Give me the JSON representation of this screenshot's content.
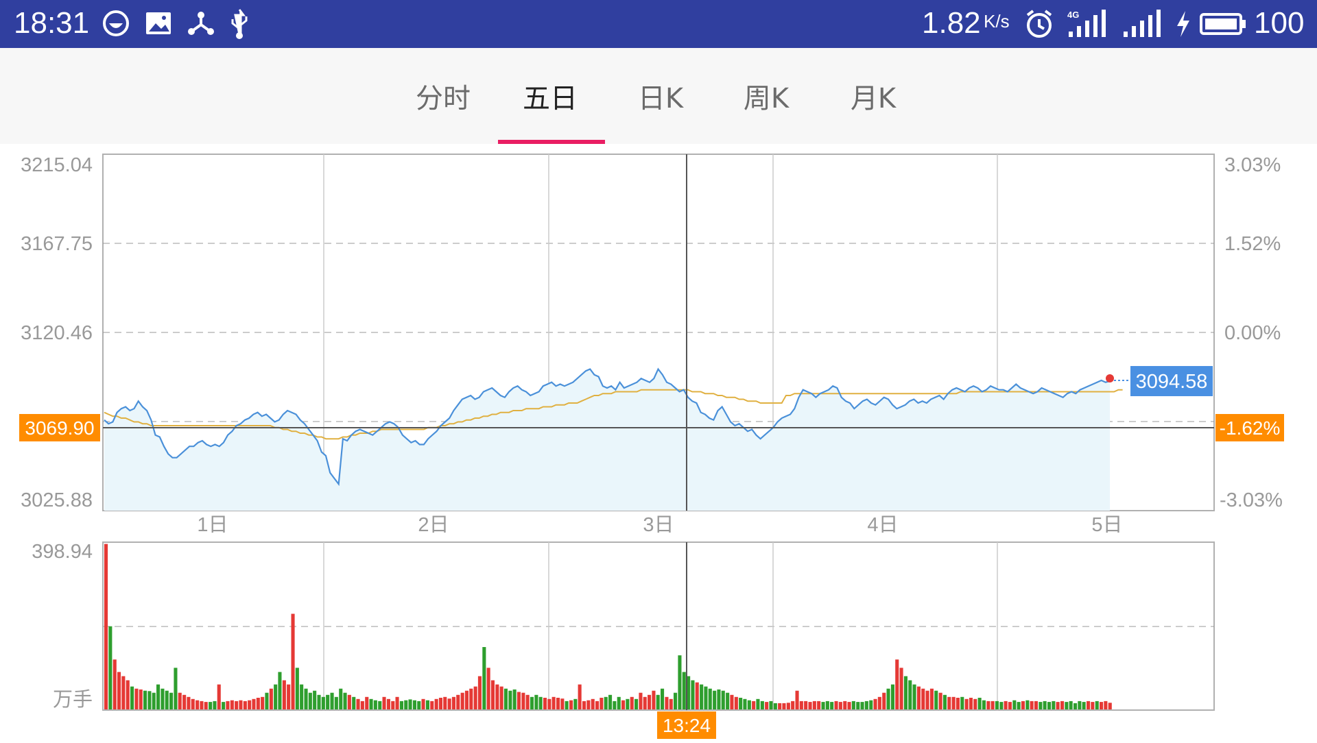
{
  "status_bar": {
    "time": "18:31",
    "net_speed": "1.82",
    "net_speed_unit": "K/s",
    "battery": "100",
    "left_icons": [
      "smile-icon",
      "image-icon",
      "share-icon",
      "usb-icon"
    ],
    "right_icons": [
      "alarm-icon",
      "signal-4g-icon",
      "signal-icon",
      "charging-icon",
      "battery-icon"
    ]
  },
  "tabs": [
    {
      "label": "分时",
      "active": false
    },
    {
      "label": "五日",
      "active": true
    },
    {
      "label": "日K",
      "active": false
    },
    {
      "label": "周K",
      "active": false
    },
    {
      "label": "月K",
      "active": false
    }
  ],
  "colors": {
    "accent": "#e91e63",
    "price_line": "#4a90d9",
    "avg_line": "#e0b040",
    "area_fill": "#eaf6fb",
    "up": "#e53935",
    "down": "#2e9e2e",
    "highlight": "#ff8c00",
    "current_price_bg": "#4a90e2"
  },
  "price_panel": {
    "left_axis": [
      "3215.04",
      "3167.75",
      "3120.46",
      "3025.88"
    ],
    "right_axis": [
      "3.03%",
      "1.52%",
      "0.00%",
      "-3.03%"
    ],
    "crosshair_price": "3069.90",
    "crosshair_percent": "-1.62%",
    "current_price": "3094.58",
    "day_labels": [
      "1日",
      "2日",
      "3日",
      "4日",
      "5日"
    ]
  },
  "volume_panel": {
    "max_label": "398.94",
    "unit_label": "万手",
    "crosshair_time": "13:24"
  },
  "chart_data": {
    "type": "line",
    "ylim": [
      3025.88,
      3215.04
    ],
    "prev_close": 3120.46,
    "series": [
      {
        "values": [
          3074,
          3072,
          3073,
          3078,
          3080,
          3081,
          3079,
          3080,
          3084,
          3081,
          3079,
          3074,
          3066,
          3065,
          3060,
          3056,
          3054,
          3054,
          3056,
          3058,
          3060,
          3060,
          3062,
          3063,
          3061,
          3060,
          3061,
          3060,
          3062,
          3066,
          3068,
          3071,
          3072,
          3074,
          3075,
          3077,
          3078,
          3076,
          3077,
          3075,
          3073,
          3074,
          3077,
          3079,
          3078,
          3077,
          3074,
          3072,
          3069,
          3066,
          3063,
          3057,
          3055,
          3046,
          3043,
          3040,
          3064,
          3063,
          3066,
          3068,
          3069,
          3068,
          3067,
          3066,
          3068,
          3070,
          3072,
          3073,
          3072,
          3070,
          3066,
          3064,
          3062,
          3063,
          3061,
          3061,
          3064,
          3066,
          3068,
          3071,
          3073,
          3075,
          3079,
          3082,
          3085,
          3086,
          3087,
          3085,
          3086,
          3089,
          3090,
          3091,
          3089,
          3087,
          3086,
          3089,
          3091,
          3092,
          3090,
          3089,
          3087,
          3088,
          3089,
          3092,
          3093,
          3094,
          3092,
          3093,
          3092,
          3093,
          3094,
          3096,
          3098,
          3100,
          3101,
          3098,
          3097,
          3092,
          3091,
          3092,
          3090,
          3094,
          3091,
          3092,
          3093,
          3094,
          3096,
          3095,
          3094,
          3096,
          3101,
          3098,
          3094,
          3093,
          3091,
          3089,
          3090,
          3086,
          3084,
          3083,
          3078,
          3077,
          3075,
          3074,
          3079,
          3081,
          3077,
          3073,
          3071,
          3072,
          3070,
          3068,
          3069,
          3066,
          3064,
          3066,
          3068,
          3070,
          3073,
          3075,
          3076,
          3077,
          3080,
          3086,
          3090,
          3089,
          3088,
          3086,
          3088,
          3089,
          3090,
          3092,
          3091,
          3086,
          3084,
          3083,
          3080,
          3082,
          3084,
          3085,
          3083,
          3082,
          3084,
          3086,
          3085,
          3082,
          3080,
          3081,
          3082,
          3084,
          3085,
          3083,
          3084,
          3083,
          3085,
          3086,
          3087,
          3085,
          3088,
          3090,
          3091,
          3090,
          3089,
          3091,
          3092,
          3091,
          3089,
          3090,
          3092,
          3091,
          3090,
          3090,
          3089,
          3091,
          3093,
          3091,
          3090,
          3089,
          3088,
          3089,
          3091,
          3090,
          3089,
          3088,
          3087,
          3086,
          3088,
          3089,
          3088,
          3090,
          3091,
          3092,
          3093,
          3094,
          3095,
          3094,
          3094.58
        ]
      },
      {
        "values": [
          3078,
          3077,
          3076,
          3076,
          3075,
          3075,
          3074,
          3073,
          3073,
          3072,
          3072,
          3071,
          3071,
          3071,
          3071,
          3071,
          3071,
          3071,
          3071,
          3071,
          3071,
          3071,
          3071,
          3071,
          3071,
          3071,
          3071,
          3071,
          3071,
          3071,
          3071,
          3071,
          3071,
          3071,
          3071,
          3071,
          3071,
          3071,
          3071,
          3071,
          3070,
          3070,
          3069,
          3069,
          3068,
          3068,
          3067,
          3067,
          3066,
          3066,
          3065,
          3065,
          3064,
          3064,
          3064,
          3064,
          3065,
          3065,
          3066,
          3066,
          3067,
          3067,
          3067,
          3068,
          3068,
          3069,
          3069,
          3069,
          3069,
          3069,
          3069,
          3069,
          3069,
          3069,
          3069,
          3069,
          3070,
          3070,
          3070,
          3071,
          3071,
          3072,
          3072,
          3073,
          3073,
          3074,
          3074,
          3075,
          3075,
          3076,
          3076,
          3077,
          3077,
          3078,
          3078,
          3078,
          3079,
          3079,
          3079,
          3080,
          3080,
          3080,
          3080,
          3081,
          3081,
          3081,
          3082,
          3082,
          3082,
          3083,
          3083,
          3083,
          3084,
          3085,
          3086,
          3087,
          3087,
          3088,
          3088,
          3088,
          3089,
          3089,
          3089,
          3089,
          3089,
          3089,
          3090,
          3090,
          3090,
          3090,
          3090,
          3090,
          3090,
          3090,
          3090,
          3090,
          3090,
          3090,
          3089,
          3089,
          3089,
          3088,
          3088,
          3088,
          3087,
          3087,
          3086,
          3086,
          3086,
          3085,
          3085,
          3084,
          3084,
          3084,
          3083,
          3083,
          3083,
          3083,
          3083,
          3083,
          3087,
          3087,
          3088,
          3088,
          3088,
          3088,
          3088,
          3088,
          3088,
          3088,
          3088,
          3088,
          3088,
          3088,
          3088,
          3088,
          3088,
          3088,
          3088,
          3088,
          3088,
          3088,
          3088,
          3088,
          3088,
          3088,
          3088,
          3088,
          3088,
          3088,
          3088,
          3088,
          3088,
          3088,
          3088,
          3088,
          3088,
          3088,
          3088,
          3088,
          3088,
          3089,
          3089,
          3089,
          3089,
          3089,
          3089,
          3089,
          3089,
          3089,
          3089,
          3089,
          3089,
          3089,
          3089,
          3089,
          3089,
          3089,
          3089,
          3089,
          3089,
          3089,
          3089,
          3089,
          3089,
          3089,
          3089,
          3089,
          3089,
          3089,
          3089,
          3089,
          3089,
          3089,
          3089,
          3089,
          3089,
          3089,
          3090,
          3090
        ]
      }
    ],
    "volume": [
      398,
      200,
      120,
      90,
      80,
      70,
      55,
      50,
      48,
      45,
      44,
      40,
      60,
      50,
      45,
      40,
      100,
      40,
      35,
      30,
      25,
      22,
      20,
      18,
      18,
      20,
      60,
      18,
      20,
      22,
      20,
      22,
      20,
      22,
      25,
      28,
      30,
      40,
      50,
      60,
      90,
      70,
      60,
      230,
      100,
      60,
      50,
      40,
      45,
      35,
      30,
      35,
      40,
      30,
      50,
      40,
      35,
      30,
      25,
      20,
      30,
      25,
      22,
      20,
      30,
      25,
      20,
      30,
      20,
      22,
      24,
      22,
      20,
      25,
      22,
      20,
      25,
      28,
      30,
      26,
      30,
      35,
      40,
      45,
      50,
      55,
      80,
      150,
      100,
      70,
      60,
      55,
      50,
      45,
      48,
      42,
      40,
      35,
      30,
      35,
      30,
      28,
      25,
      30,
      28,
      26,
      20,
      22,
      25,
      60,
      20,
      22,
      25,
      20,
      28,
      30,
      35,
      20,
      30,
      22,
      25,
      30,
      25,
      40,
      30,
      35,
      45,
      35,
      50,
      30,
      25,
      40,
      130,
      90,
      80,
      70,
      65,
      60,
      55,
      50,
      45,
      48,
      45,
      40,
      35,
      30,
      28,
      25,
      22,
      20,
      25,
      20,
      18,
      20,
      15,
      15,
      15,
      16,
      20,
      45,
      20,
      20,
      18,
      20,
      20,
      18,
      20,
      18,
      20,
      18,
      20,
      18,
      20,
      18,
      18,
      20,
      22,
      25,
      30,
      40,
      50,
      60,
      120,
      100,
      80,
      70,
      60,
      55,
      50,
      45,
      50,
      45,
      40,
      35,
      30,
      30,
      28,
      30,
      25,
      28,
      25,
      28,
      22,
      20,
      20,
      20,
      18,
      20,
      18,
      22,
      18,
      20,
      22,
      20,
      20,
      18,
      20,
      18,
      20,
      18,
      20,
      18,
      20,
      15,
      20,
      18,
      20,
      18,
      20,
      18,
      20,
      16
    ]
  }
}
